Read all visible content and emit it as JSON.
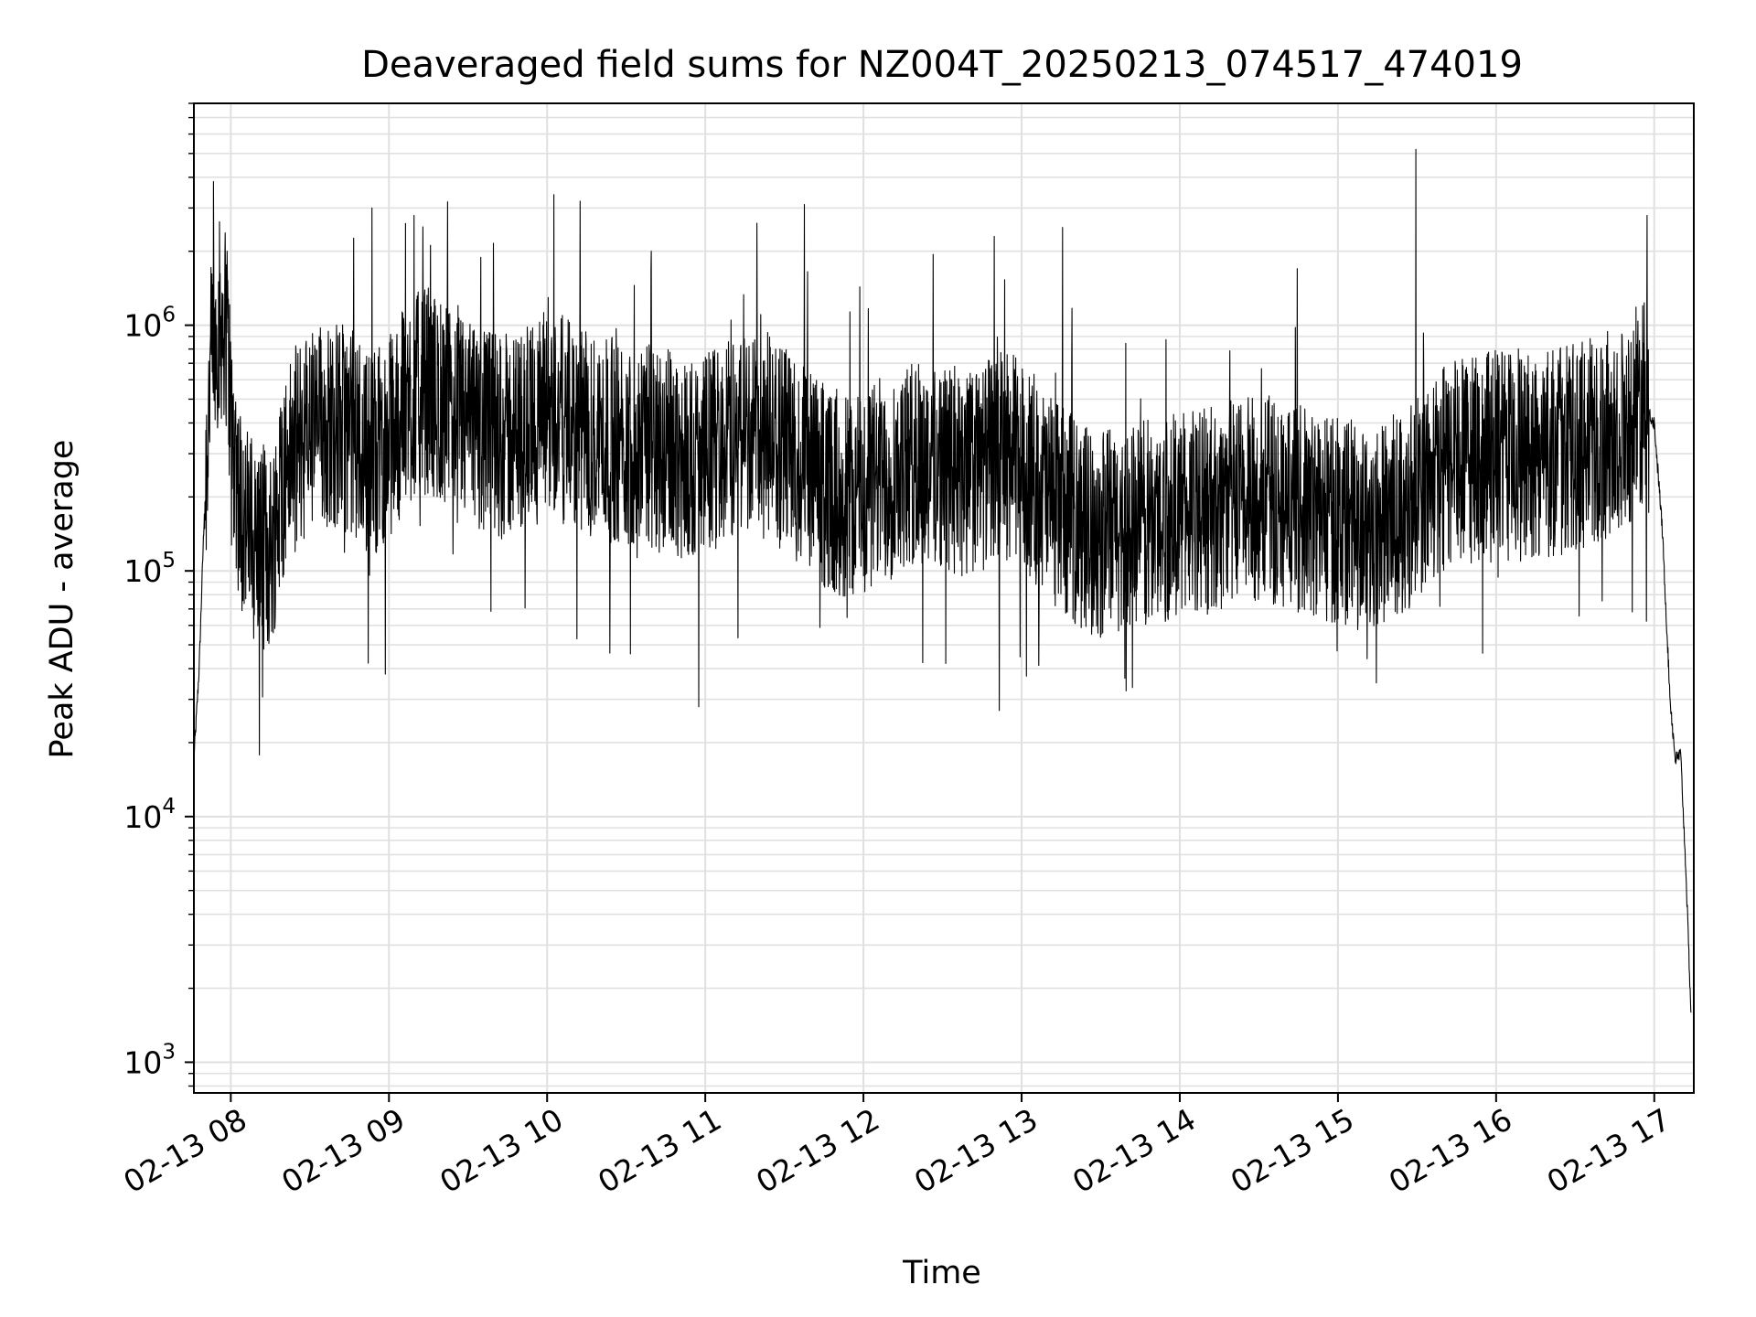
{
  "chart_data": {
    "type": "line",
    "title": "Deaveraged field sums for NZ004T_20250213_074517_474019",
    "xlabel": "Time",
    "ylabel": "Peak ADU - average",
    "yscale": "log",
    "ylim": [
      750,
      8000000
    ],
    "xlim": [
      "2025-02-13 07:46",
      "2025-02-13 17:15"
    ],
    "grid": true,
    "line_color": "#000000",
    "grid_color": "#e0e0e0",
    "x_ticks": [
      {
        "value": "2025-02-13 08:00",
        "label": "02-13 08"
      },
      {
        "value": "2025-02-13 09:00",
        "label": "02-13 09"
      },
      {
        "value": "2025-02-13 10:00",
        "label": "02-13 10"
      },
      {
        "value": "2025-02-13 11:00",
        "label": "02-13 11"
      },
      {
        "value": "2025-02-13 12:00",
        "label": "02-13 12"
      },
      {
        "value": "2025-02-13 13:00",
        "label": "02-13 13"
      },
      {
        "value": "2025-02-13 14:00",
        "label": "02-13 14"
      },
      {
        "value": "2025-02-13 15:00",
        "label": "02-13 15"
      },
      {
        "value": "2025-02-13 16:00",
        "label": "02-13 16"
      },
      {
        "value": "2025-02-13 17:00",
        "label": "02-13 17"
      }
    ],
    "y_ticks": [
      {
        "value": 1000,
        "base": "10",
        "exp": "3"
      },
      {
        "value": 10000,
        "base": "10",
        "exp": "4"
      },
      {
        "value": 100000,
        "base": "10",
        "exp": "5"
      },
      {
        "value": 1000000,
        "base": "10",
        "exp": "6"
      }
    ],
    "series": [
      {
        "x": [
          "2025-02-13 07:46",
          "2025-02-13 07:48",
          "2025-02-13 07:50",
          "2025-02-13 07:52",
          "2025-02-13 07:55",
          "2025-02-13 07:58",
          "2025-02-13 08:00",
          "2025-02-13 08:03",
          "2025-02-13 08:06",
          "2025-02-13 08:10",
          "2025-02-13 08:15",
          "2025-02-13 08:20",
          "2025-02-13 08:27",
          "2025-02-13 08:35",
          "2025-02-13 08:45",
          "2025-02-13 08:53",
          "2025-02-13 09:00",
          "2025-02-13 09:08",
          "2025-02-13 09:15",
          "2025-02-13 09:25",
          "2025-02-13 09:35",
          "2025-02-13 09:45",
          "2025-02-13 09:55",
          "2025-02-13 10:02",
          "2025-02-13 10:10",
          "2025-02-13 10:20",
          "2025-02-13 10:30",
          "2025-02-13 10:40",
          "2025-02-13 10:50",
          "2025-02-13 10:58",
          "2025-02-13 11:05",
          "2025-02-13 11:15",
          "2025-02-13 11:25",
          "2025-02-13 11:35",
          "2025-02-13 11:45",
          "2025-02-13 11:55",
          "2025-02-13 12:05",
          "2025-02-13 12:15",
          "2025-02-13 12:25",
          "2025-02-13 12:35",
          "2025-02-13 12:45",
          "2025-02-13 12:52",
          "2025-02-13 13:00",
          "2025-02-13 13:10",
          "2025-02-13 13:20",
          "2025-02-13 13:30",
          "2025-02-13 13:40",
          "2025-02-13 13:50",
          "2025-02-13 14:00",
          "2025-02-13 14:10",
          "2025-02-13 14:20",
          "2025-02-13 14:30",
          "2025-02-13 14:40",
          "2025-02-13 14:50",
          "2025-02-13 15:00",
          "2025-02-13 15:10",
          "2025-02-13 15:20",
          "2025-02-13 15:30",
          "2025-02-13 15:40",
          "2025-02-13 15:50",
          "2025-02-13 16:00",
          "2025-02-13 16:10",
          "2025-02-13 16:20",
          "2025-02-13 16:30",
          "2025-02-13 16:40",
          "2025-02-13 16:50",
          "2025-02-13 16:55",
          "2025-02-13 17:00",
          "2025-02-13 17:03",
          "2025-02-13 17:06",
          "2025-02-13 17:08",
          "2025-02-13 17:10",
          "2025-02-13 17:12",
          "2025-02-13 17:14"
        ],
        "y": [
          17000,
          40000,
          180000,
          600000,
          1000000,
          1100000,
          450000,
          200000,
          150000,
          130000,
          120000,
          250000,
          350000,
          400000,
          380000,
          300000,
          350000,
          500000,
          550000,
          420000,
          380000,
          350000,
          400000,
          450000,
          380000,
          350000,
          330000,
          320000,
          300000,
          280000,
          330000,
          380000,
          350000,
          280000,
          220000,
          200000,
          230000,
          260000,
          280000,
          250000,
          260000,
          300000,
          280000,
          200000,
          160000,
          140000,
          150000,
          160000,
          170000,
          180000,
          190000,
          200000,
          190000,
          170000,
          160000,
          150000,
          160000,
          200000,
          260000,
          280000,
          300000,
          280000,
          300000,
          320000,
          350000,
          400000,
          500000,
          400000,
          150000,
          30000,
          17000,
          18000,
          6000,
          1500
        ],
        "spikes": [
          {
            "x": "2025-02-13 07:59",
            "peak": 2000000
          },
          {
            "x": "2025-02-13 08:54",
            "peak": 3000000
          },
          {
            "x": "2025-02-13 09:10",
            "peak": 2800000
          },
          {
            "x": "2025-02-13 10:03",
            "peak": 3400000
          },
          {
            "x": "2025-02-13 10:13",
            "peak": 3200000
          },
          {
            "x": "2025-02-13 10:40",
            "peak": 2000000
          },
          {
            "x": "2025-02-13 11:20",
            "peak": 2600000
          },
          {
            "x": "2025-02-13 11:38",
            "peak": 3100000
          },
          {
            "x": "2025-02-13 12:50",
            "peak": 2300000
          },
          {
            "x": "2025-02-13 13:16",
            "peak": 2500000
          },
          {
            "x": "2025-02-13 14:45",
            "peak": 1700000
          },
          {
            "x": "2025-02-13 15:30",
            "peak": 5200000
          },
          {
            "x": "2025-02-13 16:56",
            "peak": 1200000
          }
        ],
        "dips": [
          {
            "x": "2025-02-13 08:59",
            "trough": 38000
          },
          {
            "x": "2025-02-13 10:58",
            "trough": 28000
          },
          {
            "x": "2025-02-13 12:52",
            "trough": 27000
          },
          {
            "x": "2025-02-13 15:15",
            "trough": 35000
          }
        ]
      }
    ]
  }
}
